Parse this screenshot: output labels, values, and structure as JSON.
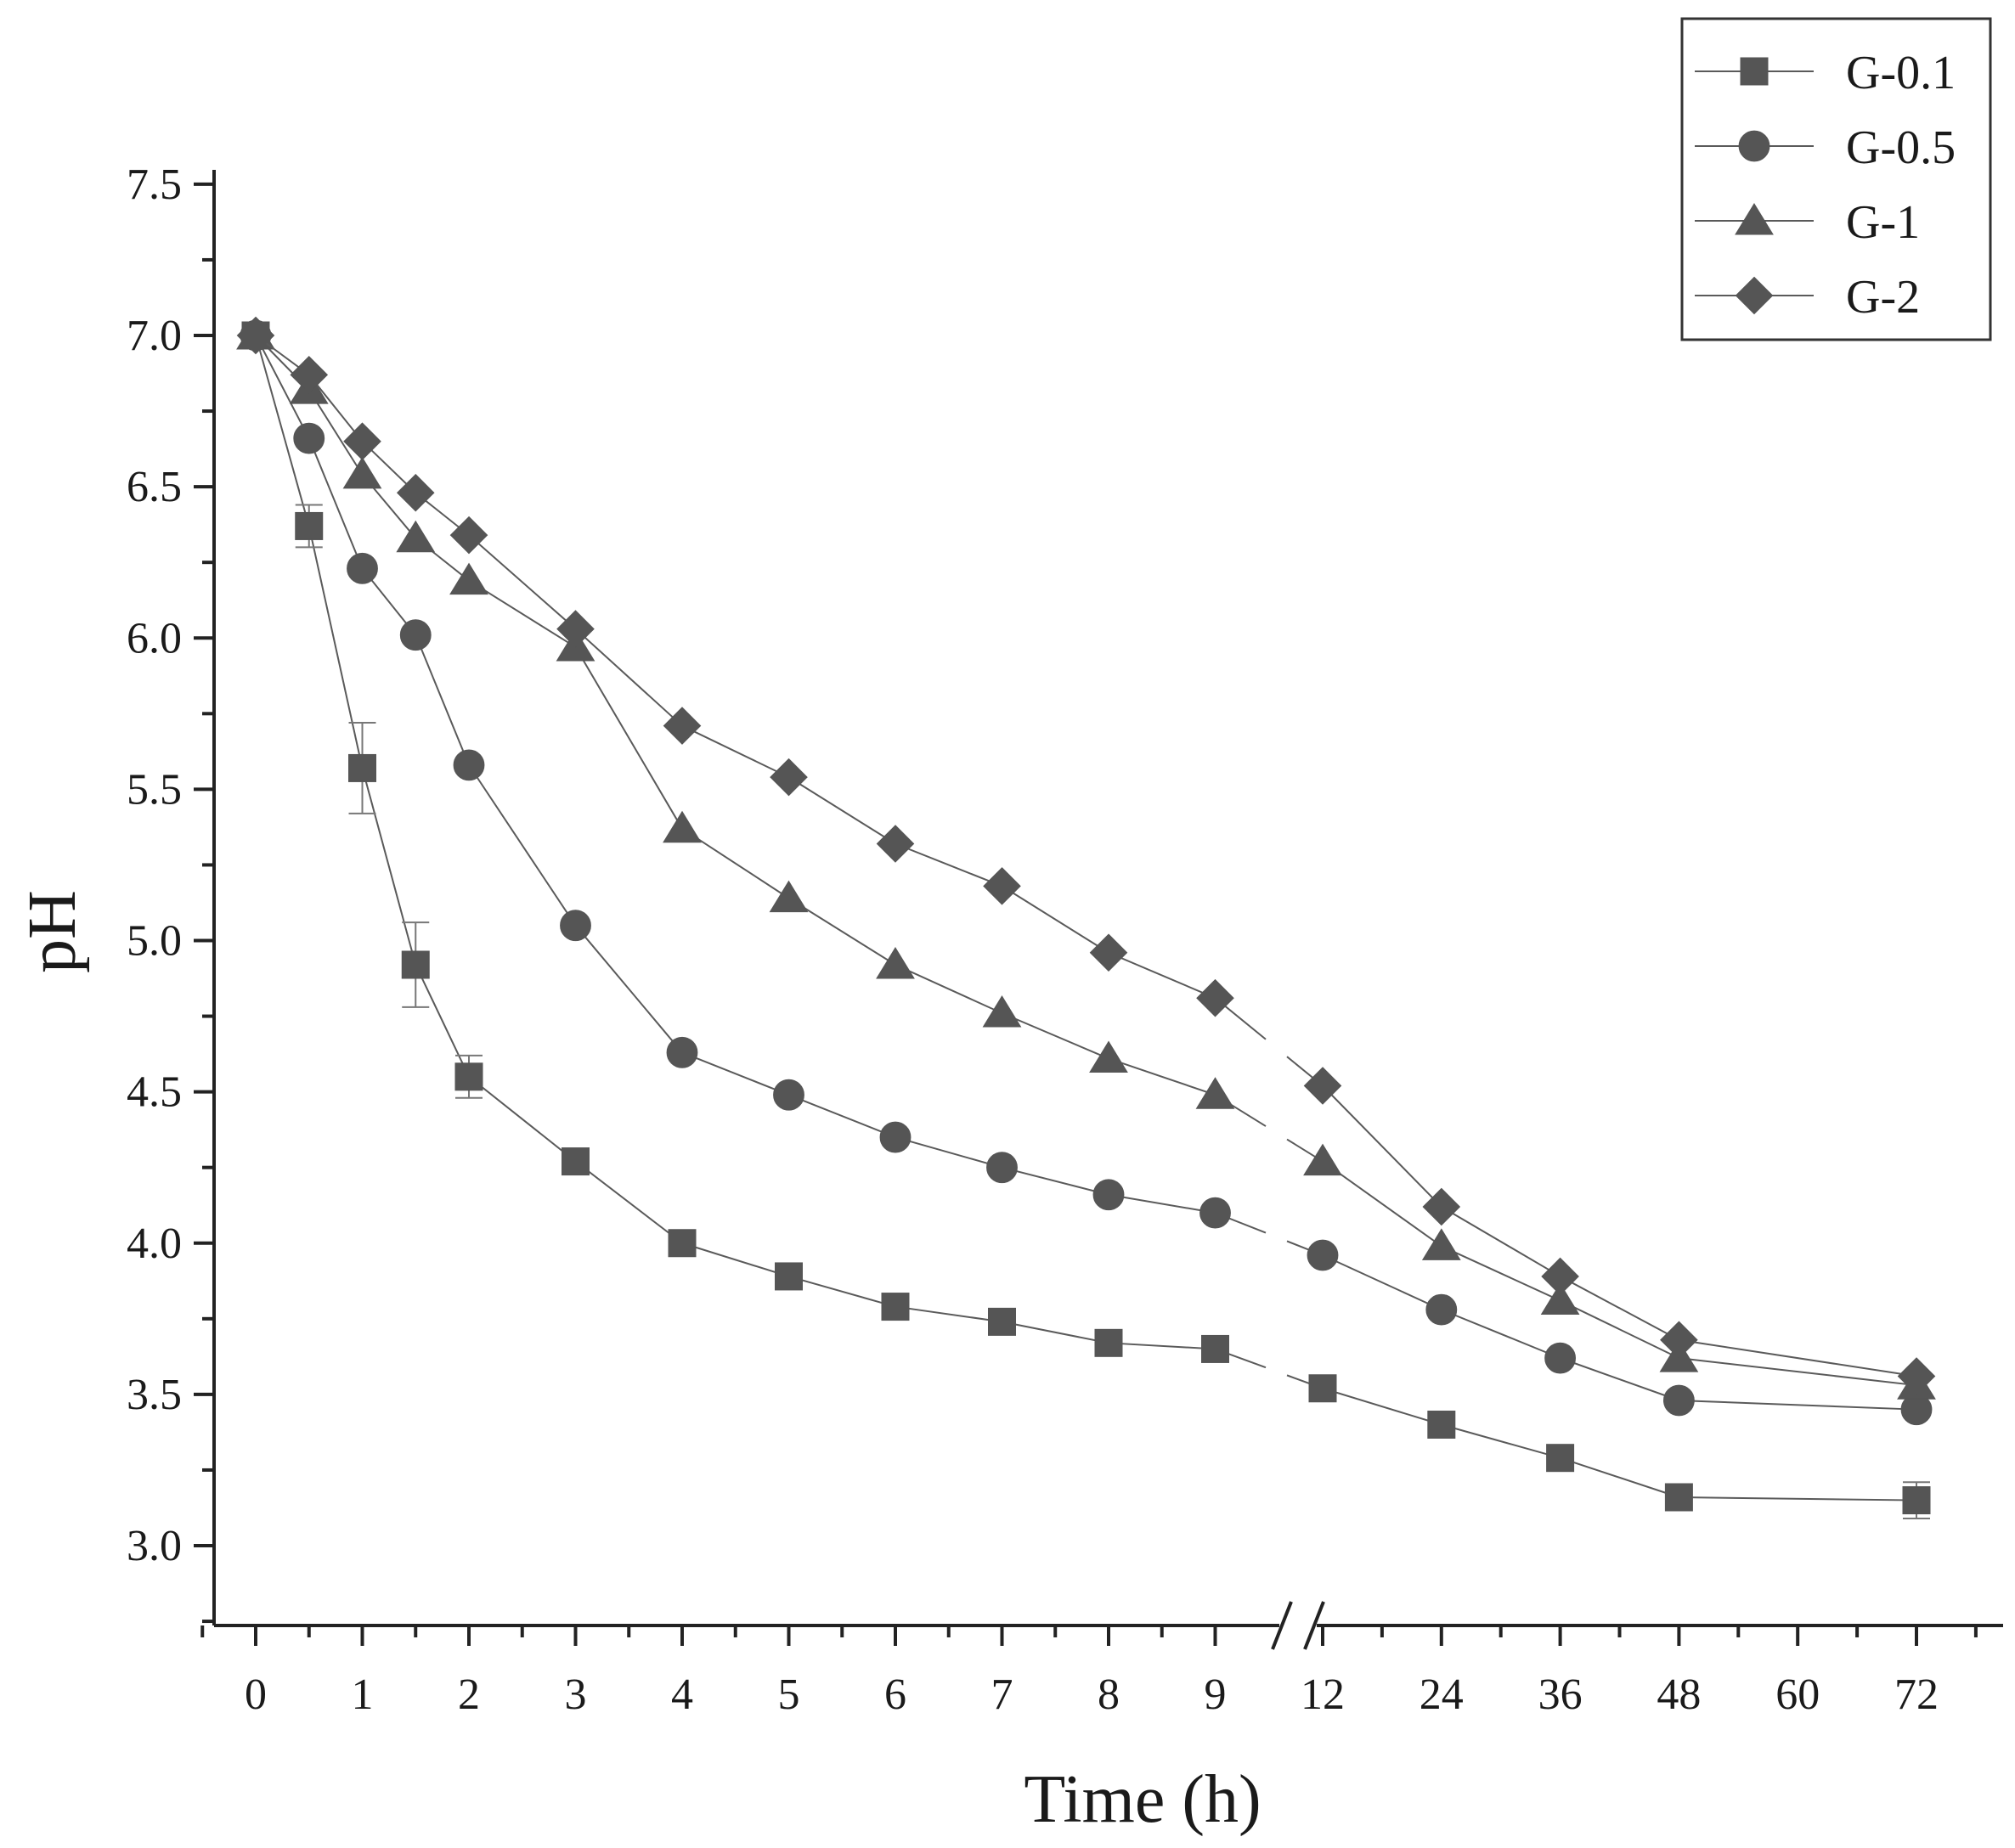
{
  "chart_data": {
    "type": "line",
    "title": "",
    "xlabel": "Time (h)",
    "ylabel": "pH",
    "ylim": [
      2.75,
      7.5
    ],
    "yticks": [
      "3.0",
      "3.5",
      "4.0",
      "4.5",
      "5.0",
      "5.5",
      "6.0",
      "6.5",
      "7.0",
      "7.5"
    ],
    "x_labels": [
      "0",
      "1",
      "2",
      "3",
      "4",
      "5",
      "6",
      "7",
      "8",
      "9",
      "12",
      "24",
      "36",
      "48",
      "60",
      "72"
    ],
    "axis_break": "between 9 and 12 h",
    "grid": false,
    "legend_position": "top-right",
    "x": [
      0,
      0.5,
      1,
      1.5,
      2,
      3,
      4,
      5,
      6,
      7,
      8,
      9,
      12,
      24,
      36,
      48,
      72
    ],
    "series": [
      {
        "name": "G-0.1",
        "marker": "square",
        "values": [
          7.0,
          6.37,
          5.57,
          4.92,
          4.55,
          4.27,
          4.0,
          3.89,
          3.79,
          3.74,
          3.67,
          3.65,
          3.52,
          3.4,
          3.29,
          3.16,
          3.15
        ],
        "errors": [
          0.0,
          0.07,
          0.15,
          0.14,
          0.07,
          0.0,
          0.0,
          0.0,
          0.0,
          0.0,
          0.0,
          0.0,
          0.0,
          0.0,
          0.0,
          0.0,
          0.06
        ]
      },
      {
        "name": "G-0.5",
        "marker": "circle",
        "values": [
          7.0,
          6.66,
          6.23,
          6.01,
          5.58,
          5.05,
          4.63,
          4.49,
          4.35,
          4.25,
          4.16,
          4.1,
          3.96,
          3.78,
          3.62,
          3.48,
          3.45
        ]
      },
      {
        "name": "G-1",
        "marker": "triangle",
        "values": [
          7.0,
          6.82,
          6.54,
          6.33,
          6.19,
          5.97,
          5.37,
          5.14,
          4.92,
          4.76,
          4.61,
          4.49,
          4.27,
          3.99,
          3.81,
          3.62,
          3.53
        ]
      },
      {
        "name": "G-2",
        "marker": "diamond",
        "values": [
          7.0,
          6.87,
          6.65,
          6.48,
          6.34,
          6.03,
          5.71,
          5.54,
          5.32,
          5.18,
          4.96,
          4.81,
          4.52,
          4.12,
          3.89,
          3.68,
          3.56
        ]
      }
    ]
  }
}
